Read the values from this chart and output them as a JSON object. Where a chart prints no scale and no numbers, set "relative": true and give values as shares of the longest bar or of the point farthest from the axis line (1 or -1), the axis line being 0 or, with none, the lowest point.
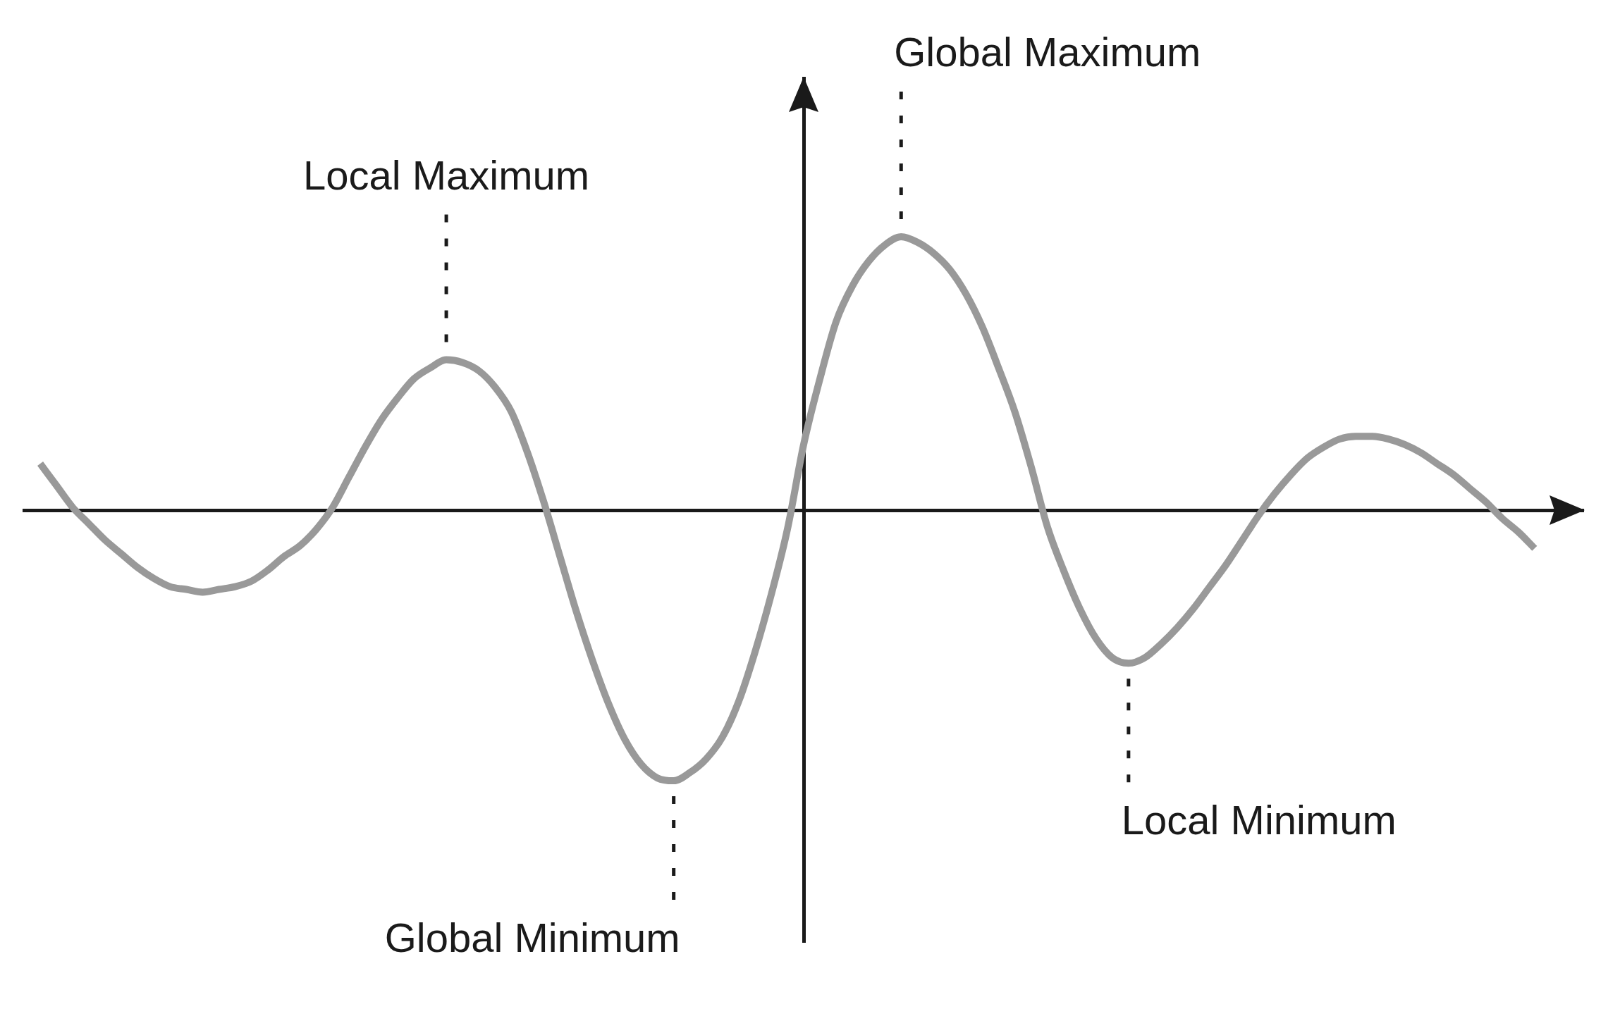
{
  "chart_data": {
    "type": "line",
    "relative": true,
    "color": "#999999",
    "marker": "none",
    "line_style": "solid",
    "categories": [
      null,
      null,
      null,
      null,
      null,
      null,
      null,
      null,
      null,
      null,
      null,
      null,
      null,
      null,
      null,
      null,
      null,
      null,
      null,
      null,
      null,
      null,
      null,
      null,
      null,
      null,
      null,
      null,
      null,
      null,
      null,
      null,
      null,
      null,
      null,
      null,
      null,
      null,
      null,
      null,
      null,
      null,
      null,
      null,
      null,
      null,
      null,
      null,
      null,
      null,
      null,
      null,
      null,
      null,
      null,
      null,
      null,
      null,
      null,
      null,
      null,
      null,
      null,
      null,
      null,
      null,
      null,
      null,
      null,
      null,
      null,
      null,
      null,
      null,
      null,
      null,
      null,
      null,
      null,
      null,
      null,
      null,
      null,
      null,
      null,
      null,
      null,
      null,
      null,
      null,
      null,
      null,
      null,
      null,
      null,
      null,
      null
    ],
    "values": [
      null,
      0.17,
      0.09,
      0.01,
      -0.05,
      -0.11,
      -0.16,
      -0.21,
      -0.25,
      -0.28,
      -0.29,
      -0.3,
      -0.29,
      -0.28,
      -0.26,
      -0.22,
      -0.17,
      -0.13,
      -0.07,
      0.01,
      0.12,
      0.23,
      0.33,
      0.41,
      0.48,
      0.52,
      0.55,
      0.54,
      0.51,
      0.45,
      0.36,
      0.21,
      0.03,
      -0.17,
      -0.37,
      -0.55,
      -0.71,
      -0.84,
      -0.93,
      -0.98,
      -0.99,
      -0.96,
      -0.91,
      -0.83,
      -0.7,
      -0.52,
      -0.31,
      -0.07,
      0.24,
      0.48,
      0.69,
      0.82,
      0.91,
      0.97,
      1.0,
      0.98,
      0.94,
      0.88,
      0.79,
      0.67,
      0.52,
      0.36,
      0.16,
      -0.06,
      -0.22,
      -0.36,
      -0.47,
      -0.54,
      -0.56,
      -0.54,
      -0.49,
      -0.43,
      -0.36,
      -0.28,
      -0.2,
      -0.11,
      -0.02,
      0.06,
      0.13,
      0.19,
      0.23,
      0.26,
      0.27,
      0.27,
      0.26,
      0.24,
      0.21,
      0.17,
      0.13,
      0.08,
      0.03,
      -0.03,
      -0.08,
      -0.14,
      null,
      null,
      null
    ],
    "annotations": [
      "Local Maximum",
      "Global Minimum",
      "Global Maximum",
      "Local Minimum"
    ]
  }
}
